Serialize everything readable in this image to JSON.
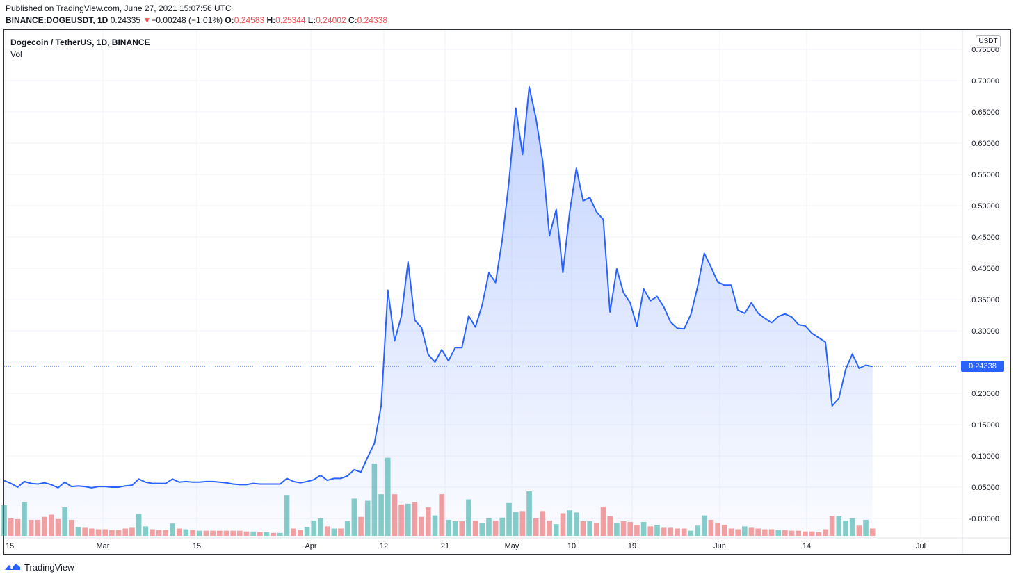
{
  "header": {
    "published": "Published on TradingView.com, June 27, 2021 15:07:56 UTC",
    "symbol": "BINANCE:DOGEUSDT, 1D",
    "last": "0.24335",
    "change_arrow": "▼",
    "change": "−0.00248 (−1.01%)",
    "o_label": "O:",
    "o": "0.24583",
    "h_label": "H:",
    "h": "0.25344",
    "l_label": "L:",
    "l": "0.24002",
    "c_label": "C:",
    "c": "0.24338"
  },
  "legend": {
    "title": "Dogecoin / TetherUS, 1D, BINANCE",
    "vol": "Vol"
  },
  "currency_button": "USDT",
  "last_price_tag": "0.24338",
  "footer": {
    "brand": "TradingView",
    "icon": "tradingview-logo-icon"
  },
  "colors": {
    "line": "#2962ff",
    "up": "#26a69a",
    "down": "#ef5350",
    "grid": "#f0f3fa"
  },
  "chart_data": {
    "type": "area",
    "x_ticks": [
      "15",
      "Mar",
      "15",
      "Apr",
      "12",
      "21",
      "May",
      "10",
      "19",
      "Jun",
      "14",
      "Jul"
    ],
    "y_ticks": [
      "0.75000",
      "0.70000",
      "0.65000",
      "0.60000",
      "0.55000",
      "0.50000",
      "0.45000",
      "0.40000",
      "0.35000",
      "0.30000",
      "0.25000",
      "0.20000",
      "0.15000",
      "0.10000",
      "0.05000",
      "-0.00000"
    ],
    "ylim": [
      0,
      0.76
    ],
    "start_date": "2021-02-15",
    "last_price": 0.24338,
    "close": [
      0.0605,
      0.056,
      0.05,
      0.059,
      0.056,
      0.055,
      0.057,
      0.054,
      0.049,
      0.058,
      0.051,
      0.052,
      0.051,
      0.049,
      0.051,
      0.051,
      0.05,
      0.05,
      0.052,
      0.053,
      0.063,
      0.058,
      0.056,
      0.056,
      0.056,
      0.063,
      0.058,
      0.059,
      0.058,
      0.058,
      0.059,
      0.059,
      0.058,
      0.057,
      0.055,
      0.054,
      0.054,
      0.056,
      0.055,
      0.055,
      0.055,
      0.055,
      0.064,
      0.059,
      0.057,
      0.059,
      0.062,
      0.069,
      0.061,
      0.064,
      0.064,
      0.068,
      0.078,
      0.074,
      0.098,
      0.12,
      0.18,
      0.365,
      0.284,
      0.323,
      0.41,
      0.317,
      0.305,
      0.262,
      0.25,
      0.27,
      0.252,
      0.273,
      0.273,
      0.324,
      0.306,
      0.341,
      0.393,
      0.377,
      0.446,
      0.54,
      0.656,
      0.582,
      0.69,
      0.64,
      0.571,
      0.452,
      0.494,
      0.393,
      0.489,
      0.56,
      0.508,
      0.513,
      0.49,
      0.478,
      0.33,
      0.399,
      0.361,
      0.345,
      0.307,
      0.367,
      0.348,
      0.355,
      0.338,
      0.314,
      0.304,
      0.303,
      0.326,
      0.37,
      0.424,
      0.402,
      0.378,
      0.373,
      0.373,
      0.333,
      0.328,
      0.345,
      0.328,
      0.32,
      0.313,
      0.323,
      0.327,
      0.322,
      0.31,
      0.308,
      0.296,
      0.289,
      0.282,
      0.18,
      0.192,
      0.238,
      0.263,
      0.24,
      0.245,
      0.243
    ],
    "volume": [
      0.042,
      0.024,
      0.023,
      0.046,
      0.022,
      0.022,
      0.026,
      0.029,
      0.023,
      0.039,
      0.022,
      0.012,
      0.011,
      0.01,
      0.009,
      0.009,
      0.008,
      0.008,
      0.01,
      0.011,
      0.03,
      0.013,
      0.009,
      0.008,
      0.008,
      0.017,
      0.01,
      0.009,
      0.008,
      0.007,
      0.007,
      0.007,
      0.007,
      0.007,
      0.007,
      0.007,
      0.006,
      0.006,
      0.005,
      0.005,
      0.004,
      0.004,
      0.056,
      0.01,
      0.008,
      0.012,
      0.021,
      0.024,
      0.013,
      0.01,
      0.01,
      0.02,
      0.051,
      0.026,
      0.048,
      0.099,
      0.057,
      0.107,
      0.057,
      0.043,
      0.044,
      0.046,
      0.026,
      0.039,
      0.028,
      0.057,
      0.022,
      0.02,
      0.02,
      0.05,
      0.021,
      0.018,
      0.024,
      0.021,
      0.025,
      0.045,
      0.033,
      0.034,
      0.061,
      0.024,
      0.034,
      0.021,
      0.016,
      0.031,
      0.035,
      0.032,
      0.02,
      0.02,
      0.018,
      0.04,
      0.027,
      0.018,
      0.02,
      0.019,
      0.015,
      0.019,
      0.013,
      0.015,
      0.011,
      0.011,
      0.01,
      0.01,
      0.007,
      0.014,
      0.028,
      0.022,
      0.018,
      0.015,
      0.01,
      0.009,
      0.013,
      0.011,
      0.01,
      0.009,
      0.009,
      0.008,
      0.008,
      0.007,
      0.007,
      0.006,
      0.006,
      0.005,
      0.009,
      0.027,
      0.027,
      0.021,
      0.024,
      0.014,
      0.022,
      0.01
    ],
    "volume_up": [
      true,
      false,
      false,
      true,
      false,
      false,
      false,
      false,
      false,
      true,
      false,
      true,
      false,
      false,
      false,
      false,
      false,
      false,
      false,
      false,
      true,
      true,
      false,
      false,
      false,
      true,
      false,
      true,
      false,
      true,
      false,
      false,
      false,
      false,
      false,
      false,
      false,
      true,
      false,
      true,
      false,
      true,
      true,
      false,
      false,
      true,
      true,
      true,
      false,
      true,
      false,
      true,
      true,
      false,
      true,
      true,
      true,
      true,
      false,
      false,
      true,
      false,
      false,
      false,
      true,
      false,
      true,
      true,
      false,
      true,
      false,
      true,
      true,
      false,
      true,
      true,
      true,
      false,
      true,
      false,
      false,
      false,
      true,
      false,
      true,
      true,
      false,
      true,
      false,
      false,
      false,
      true,
      false,
      false,
      false,
      true,
      false,
      true,
      false,
      false,
      false,
      false,
      true,
      true,
      true,
      false,
      false,
      false,
      false,
      false,
      true,
      false,
      false,
      false,
      false,
      true,
      false,
      false,
      false,
      false,
      false,
      false,
      false,
      false,
      true,
      true,
      true,
      false,
      true,
      false
    ]
  }
}
